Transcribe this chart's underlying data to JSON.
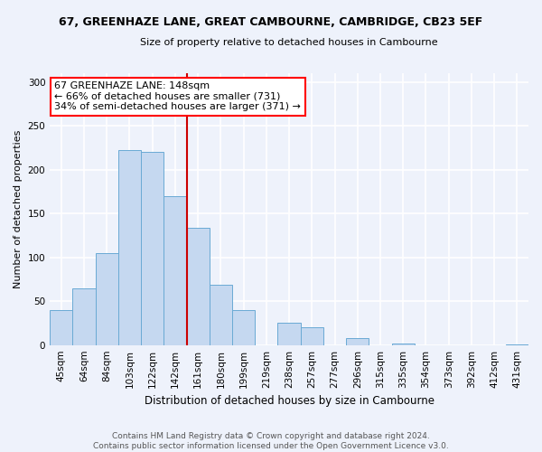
{
  "title": "67, GREENHAZE LANE, GREAT CAMBOURNE, CAMBRIDGE, CB23 5EF",
  "subtitle": "Size of property relative to detached houses in Cambourne",
  "xlabel": "Distribution of detached houses by size in Cambourne",
  "ylabel": "Number of detached properties",
  "footer_line1": "Contains HM Land Registry data © Crown copyright and database right 2024.",
  "footer_line2": "Contains public sector information licensed under the Open Government Licence v3.0.",
  "bar_labels": [
    "45sqm",
    "64sqm",
    "84sqm",
    "103sqm",
    "122sqm",
    "142sqm",
    "161sqm",
    "180sqm",
    "199sqm",
    "219sqm",
    "238sqm",
    "257sqm",
    "277sqm",
    "296sqm",
    "315sqm",
    "335sqm",
    "354sqm",
    "373sqm",
    "392sqm",
    "412sqm",
    "431sqm"
  ],
  "bar_values": [
    40,
    65,
    105,
    222,
    220,
    170,
    134,
    69,
    40,
    0,
    25,
    20,
    0,
    8,
    0,
    2,
    0,
    0,
    0,
    0,
    1
  ],
  "bar_color": "#c5d8f0",
  "bar_edgecolor": "#6aaad4",
  "background_color": "#eef2fb",
  "grid_color": "#ffffff",
  "annotation_line_color": "#cc0000",
  "annotation_box_text": "67 GREENHAZE LANE: 148sqm\n← 66% of detached houses are smaller (731)\n34% of semi-detached houses are larger (371) →",
  "ylim": [
    0,
    310
  ],
  "yticks": [
    0,
    50,
    100,
    150,
    200,
    250,
    300
  ],
  "title_fontsize": 9,
  "subtitle_fontsize": 8,
  "ylabel_fontsize": 8,
  "xlabel_fontsize": 8.5,
  "tick_fontsize": 7.5,
  "footer_fontsize": 6.5
}
